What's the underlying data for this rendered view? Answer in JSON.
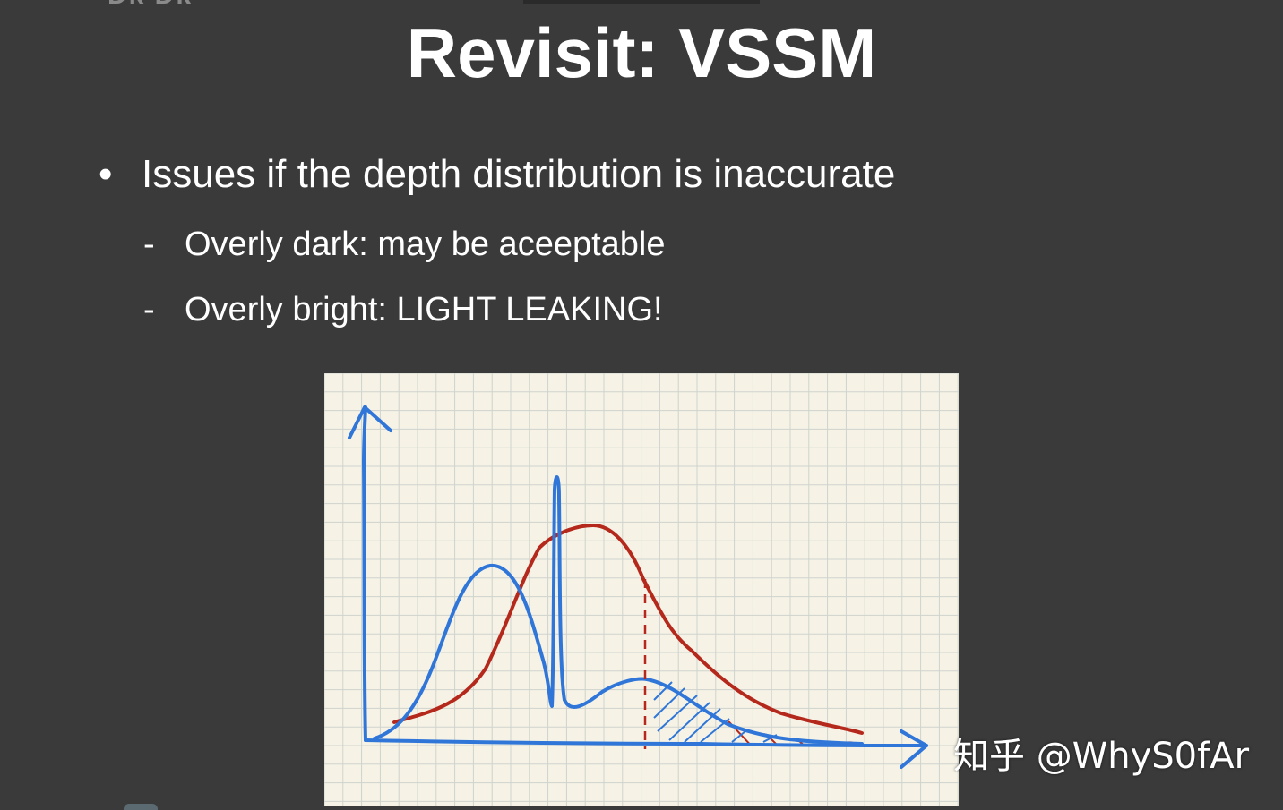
{
  "slide": {
    "title": "Revisit: VSSM",
    "bullet": {
      "marker": "•",
      "text": "Issues if the depth distribution is inaccurate"
    },
    "sub_items": [
      {
        "marker": "-",
        "text": "Overly dark: may be aceeptable"
      },
      {
        "marker": "-",
        "text": "Overly bright: LIGHT LEAKING!"
      }
    ],
    "watermark": "知乎 @WhyS0fAr",
    "corner_logo": "Dk Dk"
  },
  "colors": {
    "background": "#3a3a3a",
    "paper": "#f6f3e6",
    "grid": "#cfd3cd",
    "blue_curve": "#2f76d8",
    "red_curve": "#b5281c"
  }
}
